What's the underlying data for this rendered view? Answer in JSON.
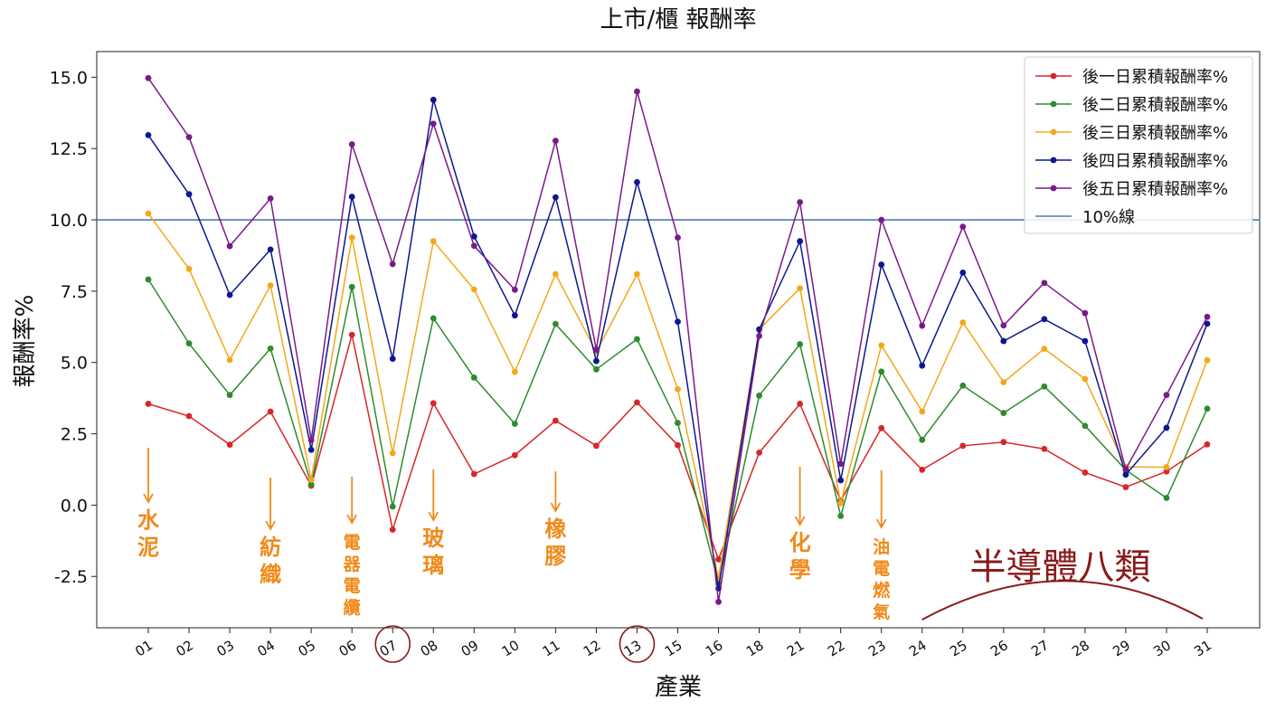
{
  "chart_data": {
    "type": "line",
    "title": "上市/櫃 報酬率",
    "xlabel": "產業",
    "ylabel": "報酬率%",
    "categories": [
      "01",
      "02",
      "03",
      "04",
      "05",
      "06",
      "07",
      "08",
      "09",
      "10",
      "11",
      "12",
      "13",
      "15",
      "16",
      "18",
      "21",
      "22",
      "23",
      "24",
      "25",
      "26",
      "27",
      "28",
      "29",
      "30",
      "31"
    ],
    "ylim": [
      -4.3,
      15.9
    ],
    "yticks": [
      15.0,
      12.5,
      10.0,
      7.5,
      5.0,
      2.5,
      0.0,
      -2.5
    ],
    "ytick_labels": [
      "15.0",
      "12.5",
      "10.0",
      "7.5",
      "5.0",
      "2.5",
      "0.0",
      "-2.5"
    ],
    "grid": false,
    "legend_position": "top-right",
    "series": [
      {
        "name": "後一日累積報酬率%",
        "color": "#d62728",
        "values": [
          3.55,
          3.12,
          2.12,
          3.28,
          0.68,
          5.97,
          -0.86,
          3.57,
          1.09,
          1.75,
          2.96,
          2.08,
          3.6,
          2.1,
          -1.9,
          1.84,
          3.55,
          0.16,
          2.7,
          1.24,
          2.08,
          2.21,
          1.97,
          1.14,
          0.63,
          1.18,
          2.13
        ]
      },
      {
        "name": "後二日累積報酬率%",
        "color": "#2e8b2e",
        "values": [
          7.91,
          5.67,
          3.86,
          5.49,
          0.72,
          7.65,
          -0.05,
          6.55,
          4.47,
          2.85,
          6.35,
          4.76,
          5.82,
          2.88,
          -2.75,
          3.84,
          5.64,
          -0.38,
          4.68,
          2.29,
          4.19,
          3.23,
          4.16,
          2.78,
          1.23,
          0.25,
          3.38
        ]
      },
      {
        "name": "後三日累積報酬率%",
        "color": "#f2a81d",
        "values": [
          10.22,
          8.28,
          5.09,
          7.7,
          0.89,
          9.38,
          1.82,
          9.25,
          7.56,
          4.67,
          8.1,
          5.37,
          8.1,
          4.06,
          -2.55,
          6.16,
          7.6,
          0.07,
          5.6,
          3.28,
          6.4,
          4.31,
          5.48,
          4.42,
          1.34,
          1.33,
          5.08
        ]
      },
      {
        "name": "後四日累積報酬率%",
        "color": "#0d1790",
        "values": [
          12.97,
          10.9,
          7.37,
          8.96,
          1.94,
          10.81,
          5.13,
          14.21,
          9.42,
          6.65,
          10.79,
          5.05,
          11.32,
          6.43,
          -2.92,
          6.16,
          9.25,
          0.87,
          8.43,
          4.89,
          8.15,
          5.75,
          6.52,
          5.75,
          1.07,
          2.71,
          6.36
        ]
      },
      {
        "name": "後五日累積報酬率%",
        "color": "#7a1a8a",
        "values": [
          14.97,
          12.9,
          9.08,
          10.75,
          2.28,
          12.65,
          8.45,
          13.37,
          9.09,
          7.55,
          12.77,
          5.45,
          14.5,
          9.38,
          -3.39,
          5.93,
          10.62,
          1.45,
          10.0,
          6.29,
          9.76,
          6.3,
          7.79,
          6.73,
          1.26,
          3.86,
          6.6
        ]
      }
    ],
    "reference_line": {
      "name": "10%線",
      "value": 10.0,
      "color": "#4c7db3"
    },
    "annotations": [
      {
        "category": "01",
        "text": "水泥"
      },
      {
        "category": "04",
        "text": "紡織"
      },
      {
        "category": "06",
        "text": "電器電纜"
      },
      {
        "category": "08",
        "text": "玻璃"
      },
      {
        "category": "11",
        "text": "橡膠"
      },
      {
        "category": "21",
        "text": "化學"
      },
      {
        "category": "23",
        "text": "油電燃氣"
      }
    ],
    "annotation_color": "#f08a1a",
    "circled_categories": [
      "07",
      "13"
    ],
    "bracket_annotation": {
      "text": "半導體八類",
      "from": "24",
      "to": "31",
      "color": "#8b1a1a"
    }
  }
}
